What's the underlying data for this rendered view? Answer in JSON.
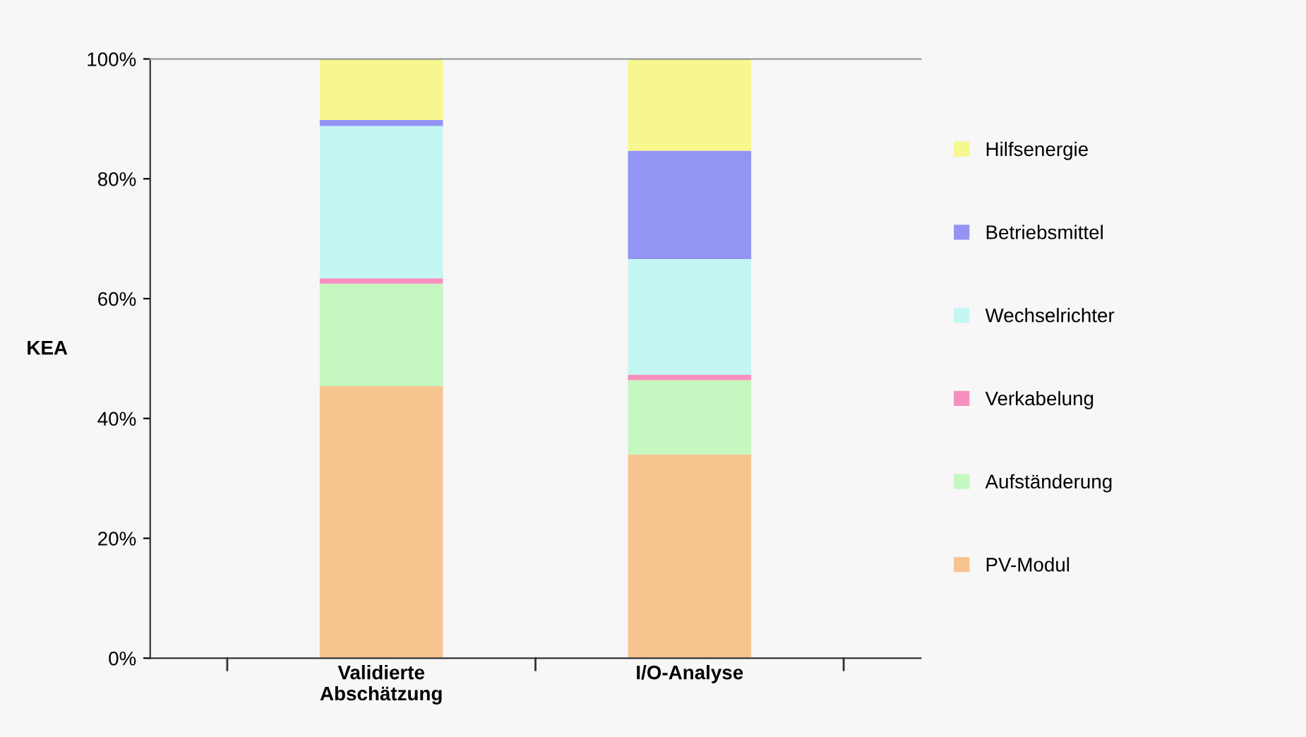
{
  "chart_data": {
    "type": "bar",
    "stacked": true,
    "ylabel": "KEA",
    "categories": [
      "Validierte\nAbschätzung",
      "I/O-Analyse"
    ],
    "series": [
      {
        "name": "PV-Modul",
        "color": "#f7c490",
        "values": [
          45.4,
          34.0
        ]
      },
      {
        "name": "Aufständerung",
        "color": "#c6f7c0",
        "values": [
          17.1,
          12.4
        ]
      },
      {
        "name": "Verkabelung",
        "color": "#f78fbf",
        "values": [
          0.9,
          0.9
        ]
      },
      {
        "name": "Wechselrichter",
        "color": "#c4f7f4",
        "values": [
          25.4,
          19.3
        ]
      },
      {
        "name": "Betriebsmittel",
        "color": "#9494f5",
        "values": [
          1.0,
          18.1
        ]
      },
      {
        "name": "Hilfsenergie",
        "color": "#f7f78f",
        "values": [
          10.2,
          15.3
        ]
      }
    ],
    "ylim": [
      0,
      100
    ],
    "yticks": [
      {
        "value": 0,
        "label": "0%"
      },
      {
        "value": 20,
        "label": "20%"
      },
      {
        "value": 40,
        "label": "40%"
      },
      {
        "value": 60,
        "label": "60%"
      },
      {
        "value": 80,
        "label": "80%"
      },
      {
        "value": 100,
        "label": "100%"
      }
    ],
    "legend": "right",
    "grid": false
  }
}
